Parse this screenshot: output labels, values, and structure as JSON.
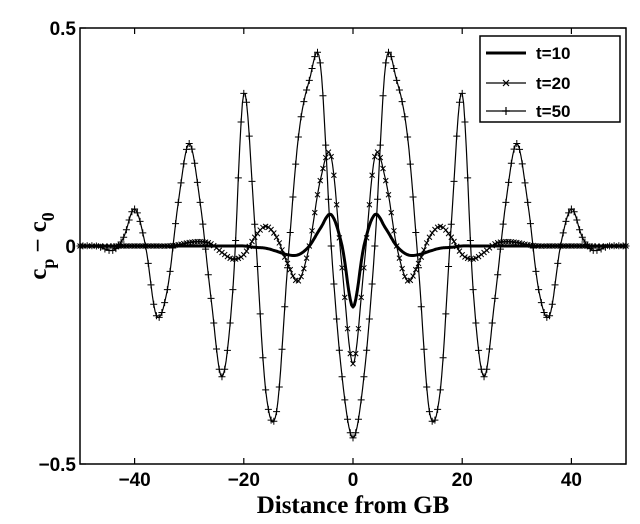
{
  "chart_data": {
    "type": "line",
    "xlabel": "Distance from GB",
    "ylabel": {
      "main1": "c",
      "sub1": "p",
      "minus": "−",
      "main2": "c",
      "sub2": "0"
    },
    "xlim": [
      -50,
      50
    ],
    "ylim": [
      -0.5,
      0.5
    ],
    "x_ticks": [
      -40,
      -20,
      0,
      20,
      40
    ],
    "x_tick_labels": [
      "−40",
      "−20",
      "0",
      "20",
      "40"
    ],
    "y_ticks": [
      -0.5,
      0,
      0.5
    ],
    "y_tick_labels": [
      "−0.5",
      "0",
      "0.5"
    ],
    "grid": false,
    "legend_position": "top-right",
    "x": [
      -50,
      -47,
      -44,
      -42,
      -40,
      -38,
      -36,
      -34,
      -32,
      -30,
      -28,
      -26,
      -24,
      -22,
      -20,
      -18,
      -16,
      -14,
      -12,
      -10,
      -8,
      -6,
      -4,
      -2,
      0,
      2,
      4,
      6,
      8,
      10,
      12,
      14,
      16,
      18,
      20,
      22,
      24,
      26,
      28,
      30,
      32,
      34,
      36,
      38,
      40,
      42,
      44,
      47,
      50
    ],
    "series": [
      {
        "name": "t=10",
        "marker": "none",
        "line_width": 3,
        "values": [
          0,
          0,
          0,
          0,
          0,
          0,
          0,
          0,
          0,
          0,
          0,
          0,
          0,
          0,
          0,
          -0.003,
          -0.005,
          -0.012,
          -0.02,
          -0.02,
          0.0,
          0.04,
          0.072,
          0.0,
          -0.14,
          0.0,
          0.072,
          0.04,
          0.0,
          -0.02,
          -0.02,
          -0.012,
          -0.005,
          -0.003,
          0,
          0,
          0,
          0,
          0,
          0,
          0,
          0,
          0,
          0,
          0,
          0,
          0,
          0,
          0
        ]
      },
      {
        "name": "t=20",
        "marker": "x",
        "line_width": 1.2,
        "values": [
          0,
          0,
          0,
          0,
          0,
          0,
          0,
          0,
          0.003,
          0.008,
          0.01,
          0.005,
          -0.015,
          -0.03,
          -0.02,
          0.02,
          0.045,
          0.02,
          -0.04,
          -0.08,
          0.0,
          0.15,
          0.205,
          -0.05,
          -0.27,
          -0.05,
          0.205,
          0.15,
          0.0,
          -0.08,
          -0.04,
          0.02,
          0.045,
          0.02,
          -0.02,
          -0.03,
          -0.015,
          0.005,
          0.01,
          0.008,
          0.003,
          0,
          0,
          0,
          0,
          0,
          0,
          0,
          0
        ]
      },
      {
        "name": "t=50",
        "marker": "+",
        "line_width": 1.2,
        "values": [
          0,
          0,
          -0.01,
          0.02,
          0.085,
          0.0,
          -0.16,
          -0.1,
          0.1,
          0.235,
          0.1,
          -0.12,
          -0.3,
          -0.1,
          0.35,
          0.05,
          -0.33,
          -0.38,
          -0.05,
          0.25,
          0.38,
          0.42,
          0.0,
          -0.3,
          -0.44,
          -0.3,
          0.0,
          0.42,
          0.38,
          0.25,
          -0.05,
          -0.38,
          -0.33,
          0.05,
          0.35,
          -0.1,
          -0.3,
          -0.12,
          0.1,
          0.235,
          0.1,
          -0.1,
          -0.16,
          0.0,
          0.085,
          0.02,
          -0.01,
          0,
          0
        ]
      }
    ]
  }
}
